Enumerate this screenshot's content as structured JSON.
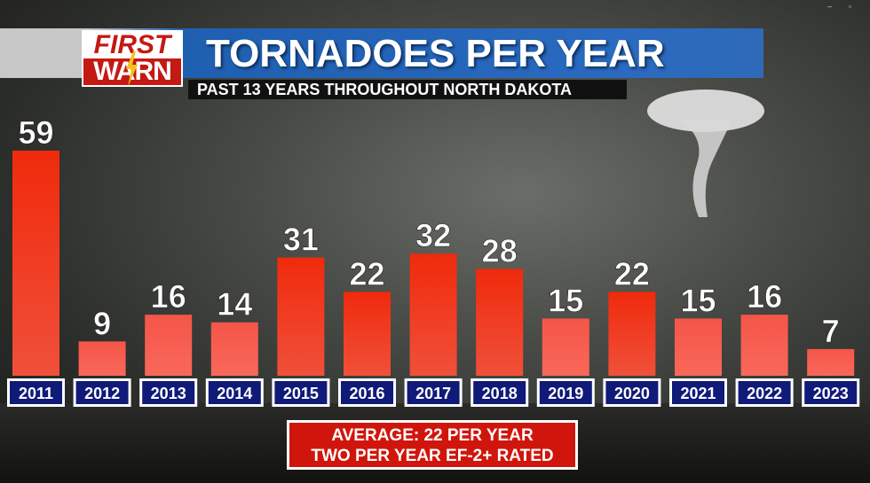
{
  "header": {
    "logo_top": "FIRST",
    "logo_bottom": "WARN",
    "title": "TORNADOES PER YEAR",
    "subtitle": "PAST 13 YEARS THROUGHOUT NORTH DAKOTA"
  },
  "footer": {
    "line1": "AVERAGE: 22 PER YEAR",
    "line2": "TWO PER YEAR EF-2+ RATED"
  },
  "colors": {
    "bar_high": "#f02a0c",
    "bar_low": "#f8685a",
    "label_box": "#101a78",
    "average_box": "#d0160c"
  },
  "chart_data": {
    "type": "bar",
    "title": "TORNADOES PER YEAR",
    "subtitle": "PAST 13 YEARS THROUGHOUT NORTH DAKOTA",
    "categories": [
      "2011",
      "2012",
      "2013",
      "2014",
      "2015",
      "2016",
      "2017",
      "2018",
      "2019",
      "2020",
      "2021",
      "2022",
      "2023"
    ],
    "values": [
      59,
      9,
      16,
      14,
      31,
      22,
      32,
      28,
      15,
      22,
      15,
      16,
      7
    ],
    "xlabel": "",
    "ylabel": "",
    "ylim": [
      0,
      59
    ],
    "grid": false,
    "data_labels": true
  }
}
